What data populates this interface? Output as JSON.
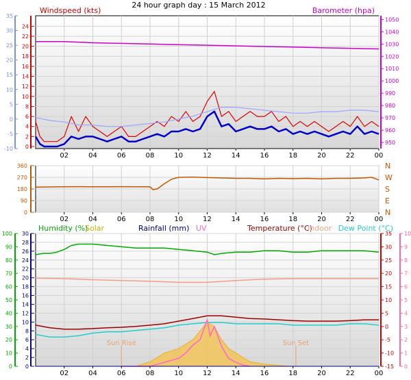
{
  "title": "24 hour graph day : 15 March 2012",
  "colors": {
    "wind_gust": "#dd0000",
    "wind_avg": "#0000cc",
    "temperature_light": "#9aa6ff",
    "barometer": "#cc00cc",
    "direction": "#c05800",
    "humidity": "#00aa00",
    "solar": "#f5c24a",
    "rainfall": "#000080",
    "uv": "#ff66cc",
    "temperature": "#990000",
    "indoor": "#f0a080",
    "dew_point": "#22cccc",
    "axis_left_blue": "#8090e0",
    "axis_red": "#cc0000",
    "axis_magenta": "#cc00cc",
    "axis_green": "#00aa00",
    "axis_pink": "#ff66aa",
    "axis_orange": "#c05800"
  },
  "chart_data": [
    {
      "type": "line",
      "id": "wind",
      "labels": {
        "windspeed": "Windspeed (kts)",
        "barometer": "Barometer (hpa)"
      },
      "x_ticks": [
        "02",
        "04",
        "06",
        "08",
        "10",
        "12",
        "14",
        "16",
        "18",
        "20",
        "22",
        "00"
      ],
      "x_range": [
        0,
        24
      ],
      "y_left_outer_ticks": [
        -10,
        -5,
        0,
        5,
        10,
        15,
        20,
        25,
        30,
        35
      ],
      "y_left_outer_range": [
        -10,
        35
      ],
      "y_left_inner_ticks": [
        0,
        2,
        4,
        6,
        8,
        10,
        12,
        14,
        16,
        18,
        20,
        22,
        24
      ],
      "y_left_inner_range": [
        0,
        25
      ],
      "y_right_ticks": [
        950,
        960,
        970,
        980,
        990,
        1000,
        1010,
        1020,
        1030,
        1040,
        1050
      ],
      "y_right_range": [
        945,
        1053
      ],
      "series": [
        {
          "name": "Windspeed (kts)",
          "axis": "inner",
          "style": "gust",
          "x": [
            0,
            0.3,
            0.6,
            1,
            1.5,
            2,
            2.5,
            3,
            3.5,
            4,
            4.5,
            5,
            5.5,
            6,
            6.5,
            7,
            7.5,
            8,
            8.5,
            9,
            9.5,
            10,
            10.5,
            11,
            11.5,
            12,
            12.5,
            13,
            13.5,
            14,
            14.5,
            15,
            15.5,
            16,
            16.5,
            17,
            17.5,
            18,
            18.5,
            19,
            19.5,
            20,
            20.5,
            21,
            21.5,
            22,
            22.5,
            23,
            23.5,
            24
          ],
          "values": [
            5,
            2,
            1,
            1,
            1,
            2,
            6,
            3,
            6,
            4,
            3,
            2,
            3,
            4,
            2,
            2,
            3,
            4,
            5,
            4,
            6,
            5,
            7,
            5,
            6,
            9,
            11,
            6,
            7,
            5,
            6,
            7,
            6,
            6,
            7,
            5,
            6,
            4,
            5,
            4,
            5,
            4,
            3,
            4,
            5,
            4,
            6,
            4,
            5,
            4
          ]
        },
        {
          "name": "average",
          "axis": "inner",
          "style": "avg",
          "x": [
            0,
            0.3,
            0.6,
            1,
            1.5,
            2,
            2.5,
            3,
            3.5,
            4,
            4.5,
            5,
            5.5,
            6,
            6.5,
            7,
            7.5,
            8,
            8.5,
            9,
            9.5,
            10,
            10.5,
            11,
            11.5,
            12,
            12.5,
            13,
            13.5,
            14,
            14.5,
            15,
            15.5,
            16,
            16.5,
            17,
            17.5,
            18,
            18.5,
            19,
            19.5,
            20,
            20.5,
            21,
            21.5,
            22,
            22.5,
            23,
            23.5,
            24
          ],
          "values": [
            2,
            0.5,
            0,
            0,
            0,
            0.5,
            2,
            1.5,
            2,
            2,
            1.5,
            1,
            1.5,
            2,
            1,
            1,
            1.5,
            2,
            2.5,
            2,
            3,
            3,
            3.5,
            3,
            3.5,
            6,
            7,
            4,
            4.5,
            3,
            3.5,
            4,
            3.5,
            3.5,
            4,
            3,
            3.5,
            2.5,
            3,
            2.5,
            3,
            2.5,
            2,
            2.5,
            3,
            2.5,
            4,
            2.5,
            3,
            2.5
          ]
        },
        {
          "name": "temperature",
          "axis": "outer",
          "style": "light",
          "x": [
            0,
            1,
            2,
            3,
            4,
            5,
            6,
            7,
            8,
            9,
            10,
            11,
            12,
            13,
            14,
            15,
            16,
            17,
            18,
            19,
            20,
            21,
            22,
            23,
            24
          ],
          "values": [
            0.5,
            -0.5,
            -1,
            -2,
            -2,
            -2.5,
            -2.5,
            -2,
            -1.5,
            -1,
            0,
            1,
            2.5,
            4,
            4,
            3.5,
            3,
            2.5,
            2,
            2,
            2.5,
            2.5,
            3,
            3,
            2.5
          ]
        },
        {
          "name": "Barometer (hpa)",
          "axis": "right",
          "style": "baro",
          "x": [
            0,
            2,
            4,
            6,
            8,
            10,
            12,
            14,
            16,
            18,
            20,
            22,
            24
          ],
          "values": [
            1032,
            1032,
            1031,
            1030.5,
            1030,
            1029.5,
            1029,
            1028.5,
            1028,
            1027.5,
            1027,
            1026.5,
            1026
          ]
        }
      ]
    },
    {
      "type": "line",
      "id": "direction",
      "x_ticks": [
        "02",
        "04",
        "06",
        "08",
        "10",
        "12",
        "14",
        "16",
        "18",
        "20",
        "22",
        "00"
      ],
      "x_range": [
        0,
        24
      ],
      "y_ticks": [
        0,
        90,
        180,
        270,
        360
      ],
      "y_range": [
        0,
        360
      ],
      "compass": [
        "N",
        "W",
        "S",
        "E",
        "N"
      ],
      "series": [
        {
          "name": "direction",
          "x": [
            0,
            1,
            2,
            3,
            4,
            5,
            6,
            7,
            8,
            8.2,
            8.5,
            9,
            9.5,
            10,
            11,
            12,
            13,
            14,
            15,
            16,
            17,
            18,
            19,
            20,
            21,
            22,
            23,
            23.5,
            24
          ],
          "values": [
            195,
            196,
            197,
            198,
            197,
            197,
            198,
            197,
            197,
            175,
            180,
            220,
            255,
            270,
            272,
            268,
            265,
            262,
            262,
            258,
            262,
            260,
            262,
            258,
            262,
            262,
            265,
            270,
            250
          ]
        }
      ]
    },
    {
      "type": "line",
      "id": "climate",
      "labels": {
        "humidity": "Humidity (%)",
        "solar": "Solar",
        "rainfall": "Rainfall (mm)",
        "uv": "UV",
        "temperature": "Temperature (°C)",
        "indoor": "Indoor",
        "dew_point": "Dew Point (°C)",
        "sun_rise": "Sun Rise",
        "sun_set": "Sun Set"
      },
      "x_ticks": [
        "02",
        "04",
        "06",
        "08",
        "10",
        "12",
        "14",
        "16",
        "18",
        "20",
        "22",
        "00"
      ],
      "x_range": [
        0,
        24
      ],
      "humidity_ticks": [
        0,
        10,
        20,
        30,
        40,
        50,
        60,
        70,
        80,
        90,
        100
      ],
      "humidity_range": [
        0,
        100
      ],
      "rain_ticks": [
        0,
        2,
        4,
        6,
        8,
        10,
        12,
        14,
        16,
        18,
        20,
        22,
        24,
        26,
        28,
        30
      ],
      "rain_range": [
        0,
        30
      ],
      "temp_ticks": [
        -15,
        -10,
        -5,
        0,
        5,
        10,
        15,
        20,
        25,
        30,
        35
      ],
      "temp_range": [
        -15,
        35
      ],
      "uv_ticks": [
        0,
        1,
        2,
        3,
        4,
        5,
        6,
        7,
        8,
        9,
        10
      ],
      "uv_range": [
        0,
        10
      ],
      "sun_rise_x": 6.0,
      "sun_set_x": 18.2,
      "series": [
        {
          "name": "Humidity (%)",
          "axis": "humidity",
          "x": [
            0,
            0.5,
            1,
            1.5,
            2,
            2.5,
            3,
            4,
            5,
            6,
            7,
            8,
            9,
            10,
            11,
            12,
            12.5,
            13,
            14,
            15,
            16,
            17,
            18,
            19,
            20,
            21,
            22,
            23,
            24
          ],
          "values": [
            84,
            85,
            85,
            86,
            88,
            91,
            92,
            92,
            91,
            90,
            89,
            89,
            89,
            88,
            87,
            86,
            84,
            85,
            86,
            86,
            87,
            87,
            86,
            86,
            87,
            87,
            87,
            87,
            86
          ]
        },
        {
          "name": "Indoor",
          "axis": "temp",
          "x": [
            0,
            2,
            4,
            6,
            8,
            10,
            12,
            14,
            16,
            18,
            20,
            22,
            24
          ],
          "values": [
            18.2,
            18.0,
            17.6,
            17.3,
            17.0,
            16.6,
            16.6,
            17.3,
            17.8,
            18.0,
            18.0,
            18.0,
            18.0
          ]
        },
        {
          "name": "Temperature (°C)",
          "axis": "temp",
          "x": [
            0,
            1,
            2,
            3,
            4,
            5,
            6,
            7,
            8,
            9,
            10,
            11,
            12,
            13,
            14,
            15,
            16,
            17,
            18,
            19,
            20,
            21,
            22,
            23,
            24
          ],
          "values": [
            0.5,
            -0.5,
            -1,
            -1,
            -0.8,
            -0.5,
            -0.3,
            0,
            0.5,
            1,
            2,
            3,
            4,
            4,
            3.5,
            3,
            2.8,
            2.5,
            2.2,
            2,
            2,
            2,
            2.2,
            2.5,
            2.5
          ]
        },
        {
          "name": "Dew Point (°C)",
          "axis": "temp",
          "x": [
            0,
            1,
            2,
            3,
            4,
            5,
            6,
            7,
            8,
            9,
            10,
            11,
            12,
            13,
            14,
            15,
            16,
            17,
            18,
            19,
            20,
            21,
            22,
            23,
            24
          ],
          "values": [
            -3,
            -4,
            -4,
            -3.5,
            -2.5,
            -2,
            -2,
            -1.5,
            -1,
            -0.5,
            0.5,
            1,
            1.5,
            1.5,
            1,
            1,
            1,
            1,
            0.5,
            0.5,
            0.5,
            0.5,
            1,
            1,
            0.5
          ]
        },
        {
          "name": "Solar",
          "axis": "rain",
          "x": [
            6,
            7,
            8,
            9,
            10,
            11,
            11.5,
            12,
            12.5,
            13,
            13.5,
            14,
            15,
            16,
            17,
            18
          ],
          "values": [
            0,
            0,
            1,
            3,
            4,
            6,
            8,
            10,
            9,
            6,
            4,
            3,
            1,
            0.5,
            0.2,
            0
          ]
        },
        {
          "name": "UV",
          "axis": "uv",
          "x": [
            6,
            7,
            8,
            9,
            10,
            10.5,
            11,
            11.5,
            12,
            12.2,
            12.5,
            13,
            13.5,
            14,
            14.5,
            15
          ],
          "values": [
            0,
            0,
            0,
            0.3,
            0.6,
            1,
            1.6,
            2,
            3.5,
            2.3,
            3,
            1.5,
            0.6,
            0.3,
            0.1,
            0
          ]
        },
        {
          "name": "Rainfall (mm)",
          "axis": "rain",
          "x": [
            0,
            24
          ],
          "values": [
            0,
            0
          ]
        }
      ]
    }
  ]
}
